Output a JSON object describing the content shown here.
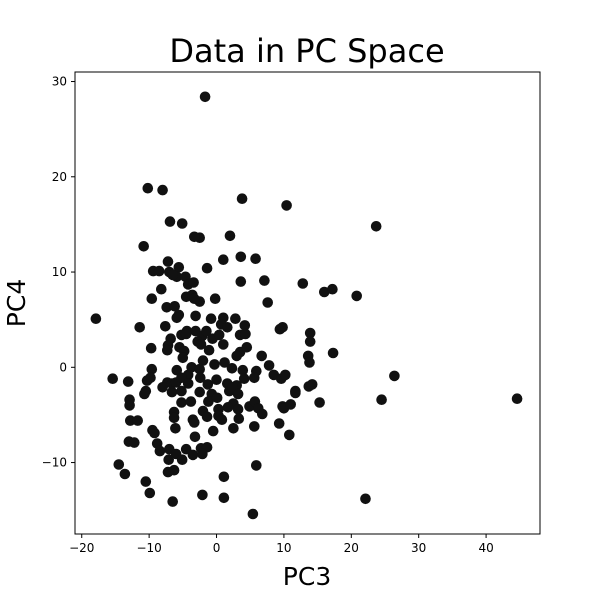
{
  "chart_data": {
    "type": "scatter",
    "title": "Data in PC Space",
    "xlabel": "PC3",
    "ylabel": "PC4",
    "xlim": [
      -21,
      48
    ],
    "ylim": [
      -17.5,
      31
    ],
    "xticks": [
      -20,
      -10,
      0,
      10,
      20,
      30,
      40
    ],
    "yticks": [
      -10,
      0,
      10,
      20,
      30
    ],
    "xtick_labels": [
      "−20",
      "−10",
      "0",
      "10",
      "20",
      "30",
      "40"
    ],
    "ytick_labels": [
      "−10",
      "0",
      "10",
      "20",
      "30"
    ],
    "grid": false,
    "marker_color": "#111111",
    "points": [
      [
        -1.7,
        28.4
      ],
      [
        -10.2,
        18.8
      ],
      [
        -8,
        18.6
      ],
      [
        3.8,
        17.7
      ],
      [
        10.4,
        17
      ],
      [
        23.7,
        14.8
      ],
      [
        -6.9,
        15.3
      ],
      [
        -5.1,
        15.1
      ],
      [
        -2.5,
        13.6
      ],
      [
        -3.3,
        13.7
      ],
      [
        2,
        13.8
      ],
      [
        -10.8,
        12.7
      ],
      [
        -7.2,
        11.1
      ],
      [
        1,
        11.3
      ],
      [
        3.6,
        11.6
      ],
      [
        5.8,
        11.4
      ],
      [
        -9.4,
        10.1
      ],
      [
        -7,
        10
      ],
      [
        -5.6,
        10.5
      ],
      [
        -1.4,
        10.4
      ],
      [
        -8.5,
        10.1
      ],
      [
        -5.9,
        9.5
      ],
      [
        -4.6,
        9.5
      ],
      [
        -6.5,
        9.7
      ],
      [
        -4.2,
        8.7
      ],
      [
        -3.4,
        8.9
      ],
      [
        -8.2,
        8.2
      ],
      [
        3.6,
        9
      ],
      [
        7.1,
        9.1
      ],
      [
        12.8,
        8.8
      ],
      [
        -4.5,
        7.4
      ],
      [
        -3.6,
        7.6
      ],
      [
        -2.5,
        6.9
      ],
      [
        -3.3,
        7.2
      ],
      [
        -9.6,
        7.2
      ],
      [
        -0.2,
        7.2
      ],
      [
        7.6,
        6.8
      ],
      [
        16,
        7.9
      ],
      [
        17.2,
        8.2
      ],
      [
        20.8,
        7.5
      ],
      [
        -7.4,
        6.3
      ],
      [
        -6.2,
        6.4
      ],
      [
        -5.6,
        5.5
      ],
      [
        -5.9,
        5.2
      ],
      [
        -3.1,
        5.4
      ],
      [
        -0.8,
        5.1
      ],
      [
        1,
        5.2
      ],
      [
        2.8,
        5.1
      ],
      [
        -17.9,
        5.1
      ],
      [
        -11.4,
        4.2
      ],
      [
        -7.6,
        4.3
      ],
      [
        -4.4,
        3.8
      ],
      [
        -3.1,
        3.8
      ],
      [
        0.7,
        4.5
      ],
      [
        1.6,
        4.2
      ],
      [
        4.2,
        4.4
      ],
      [
        9.4,
        4
      ],
      [
        9.8,
        4.2
      ],
      [
        13.9,
        3.6
      ],
      [
        -6.8,
        3
      ],
      [
        -5.2,
        3.4
      ],
      [
        -4.5,
        3.5
      ],
      [
        -2.1,
        3.3
      ],
      [
        -1.5,
        3.8
      ],
      [
        -0.6,
        3
      ],
      [
        0.4,
        3.4
      ],
      [
        3.5,
        3.4
      ],
      [
        4.3,
        3.5
      ],
      [
        13.9,
        2.7
      ],
      [
        -9.7,
        2
      ],
      [
        -7.2,
        2.3
      ],
      [
        -5.5,
        2.1
      ],
      [
        -4.8,
        1.7
      ],
      [
        -2.8,
        2.7
      ],
      [
        -2.3,
        2.4
      ],
      [
        -1.1,
        1.8
      ],
      [
        1,
        2.4
      ],
      [
        3.5,
        1.6
      ],
      [
        4.5,
        2.1
      ],
      [
        -7.3,
        1.8
      ],
      [
        -5,
        1
      ],
      [
        -2,
        0.7
      ],
      [
        -0.3,
        0.3
      ],
      [
        1.2,
        0.5
      ],
      [
        3,
        1.2
      ],
      [
        6.7,
        1.2
      ],
      [
        13.6,
        1.2
      ],
      [
        17.3,
        1.5
      ],
      [
        -9.6,
        -0.2
      ],
      [
        -5.9,
        -0.3
      ],
      [
        -4.2,
        -0.8
      ],
      [
        -3.7,
        0
      ],
      [
        -2.5,
        -0.2
      ],
      [
        2.3,
        -0.1
      ],
      [
        3.9,
        -0.3
      ],
      [
        5.9,
        -0.4
      ],
      [
        7.8,
        0.2
      ],
      [
        13.8,
        0.5
      ],
      [
        -15.4,
        -1.2
      ],
      [
        -13.1,
        -1.5
      ],
      [
        -10.3,
        -1.4
      ],
      [
        -9.8,
        -1.1
      ],
      [
        -7.3,
        -1.6
      ],
      [
        -6.6,
        -1.7
      ],
      [
        -6,
        -1.6
      ],
      [
        -5.2,
        -1.1
      ],
      [
        -4.2,
        -1.7
      ],
      [
        -2.4,
        -1.1
      ],
      [
        -1.3,
        -1.8
      ],
      [
        0,
        -1.3
      ],
      [
        1.6,
        -1.7
      ],
      [
        3,
        -1.9
      ],
      [
        4.1,
        -1.2
      ],
      [
        5.6,
        -1.1
      ],
      [
        8.5,
        -0.8
      ],
      [
        9.6,
        -1.2
      ],
      [
        10.2,
        -0.8
      ],
      [
        26.4,
        -0.9
      ],
      [
        -10.5,
        -2.5
      ],
      [
        -10.7,
        -2.8
      ],
      [
        -8,
        -2.1
      ],
      [
        -6.6,
        -2.6
      ],
      [
        -5.2,
        -2.5
      ],
      [
        -2.5,
        -2.6
      ],
      [
        -0.7,
        -2.8
      ],
      [
        1.9,
        -2.5
      ],
      [
        2.4,
        -2.1
      ],
      [
        3.2,
        -2.8
      ],
      [
        13.7,
        -2
      ],
      [
        14.2,
        -1.8
      ],
      [
        11.7,
        -2.5
      ],
      [
        11.7,
        -2.7
      ],
      [
        -12.9,
        -3.4
      ],
      [
        -12.9,
        -4
      ],
      [
        -5.2,
        -3.7
      ],
      [
        -3.8,
        -3.6
      ],
      [
        -1.2,
        -3.6
      ],
      [
        0.1,
        -3.2
      ],
      [
        2.5,
        -3.8
      ],
      [
        4.9,
        -4.1
      ],
      [
        5.7,
        -3.6
      ],
      [
        9.8,
        -4.1
      ],
      [
        15.3,
        -3.7
      ],
      [
        24.5,
        -3.4
      ],
      [
        44.6,
        -3.3
      ],
      [
        -6.3,
        -4.7
      ],
      [
        -2,
        -4.6
      ],
      [
        0.3,
        -4.4
      ],
      [
        1.7,
        -4.2
      ],
      [
        3.2,
        -4.4
      ],
      [
        6.2,
        -4.3
      ],
      [
        10,
        -4.3
      ],
      [
        11,
        -3.9
      ],
      [
        -12.8,
        -5.6
      ],
      [
        -11.7,
        -5.6
      ],
      [
        -6.3,
        -5.3
      ],
      [
        -3.5,
        -5.5
      ],
      [
        -1.4,
        -5.2
      ],
      [
        0.3,
        -5.1
      ],
      [
        0.8,
        -5.5
      ],
      [
        3.3,
        -5.4
      ],
      [
        6.8,
        -4.9
      ],
      [
        -6.1,
        -6.4
      ],
      [
        -3.3,
        -5.8
      ],
      [
        2.5,
        -6.4
      ],
      [
        5.6,
        -6.2
      ],
      [
        9.3,
        -5.9
      ],
      [
        -9.5,
        -6.6
      ],
      [
        -9.2,
        -6.9
      ],
      [
        -3.2,
        -7.3
      ],
      [
        -0.5,
        -6.7
      ],
      [
        10.8,
        -7.1
      ],
      [
        -13,
        -7.8
      ],
      [
        -12.2,
        -7.9
      ],
      [
        -8.8,
        -8
      ],
      [
        -8.4,
        -8.8
      ],
      [
        -7,
        -8.6
      ],
      [
        -4.5,
        -8.6
      ],
      [
        -2.3,
        -8.5
      ],
      [
        -1.4,
        -8.4
      ],
      [
        -6,
        -9.1
      ],
      [
        -3.5,
        -9.2
      ],
      [
        -2.1,
        -9.1
      ],
      [
        -5.1,
        -9.7
      ],
      [
        -7.1,
        -9.7
      ],
      [
        -14.5,
        -10.2
      ],
      [
        -6.3,
        -10.8
      ],
      [
        -7.2,
        -11
      ],
      [
        -13.6,
        -11.2
      ],
      [
        5.9,
        -10.3
      ],
      [
        1.1,
        -11.5
      ],
      [
        -10.5,
        -12
      ],
      [
        -9.9,
        -13.2
      ],
      [
        -2.1,
        -13.4
      ],
      [
        1.1,
        -13.7
      ],
      [
        22.1,
        -13.8
      ],
      [
        -6.5,
        -14.1
      ],
      [
        5.4,
        -15.4
      ]
    ]
  }
}
